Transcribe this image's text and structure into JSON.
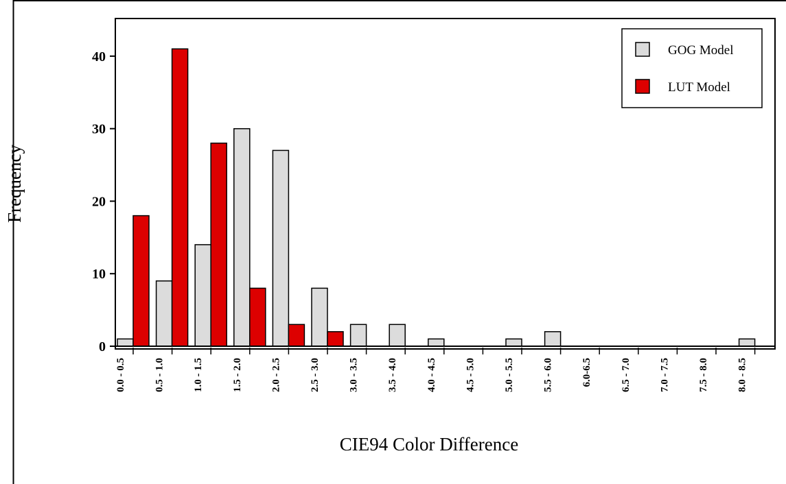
{
  "chart_data": {
    "type": "bar",
    "title": "",
    "xlabel": "CIE94 Color Difference",
    "ylabel": "Frequency",
    "ylim": [
      0,
      45
    ],
    "yticks": [
      0,
      10,
      20,
      30,
      40
    ],
    "grid": false,
    "legend_position": "top-right",
    "categories": [
      "0.0 - 0.5",
      "0.5 - 1.0",
      "1.0 - 1.5",
      "1.5 - 2.0",
      "2.0 - 2.5",
      "2.5 - 3.0",
      "3.0 - 3.5",
      "3.5 - 4.0",
      "4.0 - 4.5",
      "4.5 - 5.0",
      "5.0 - 5.5",
      "5.5 - 6.0",
      "6.0-6.5",
      "6.5 - 7.0",
      "7.0 - 7.5",
      "7.5 - 8.0",
      "8.0 - 8.5"
    ],
    "series": [
      {
        "name": "GOG Model",
        "color": "#dcdcdc",
        "values": [
          1,
          9,
          14,
          30,
          27,
          8,
          3,
          3,
          1,
          0,
          1,
          2,
          0,
          0,
          0,
          0,
          1
        ]
      },
      {
        "name": "LUT Model",
        "color": "#dd0000",
        "values": [
          18,
          41,
          28,
          8,
          3,
          2,
          0,
          0,
          0,
          0,
          0,
          0,
          0,
          0,
          0,
          0,
          0
        ]
      }
    ]
  }
}
